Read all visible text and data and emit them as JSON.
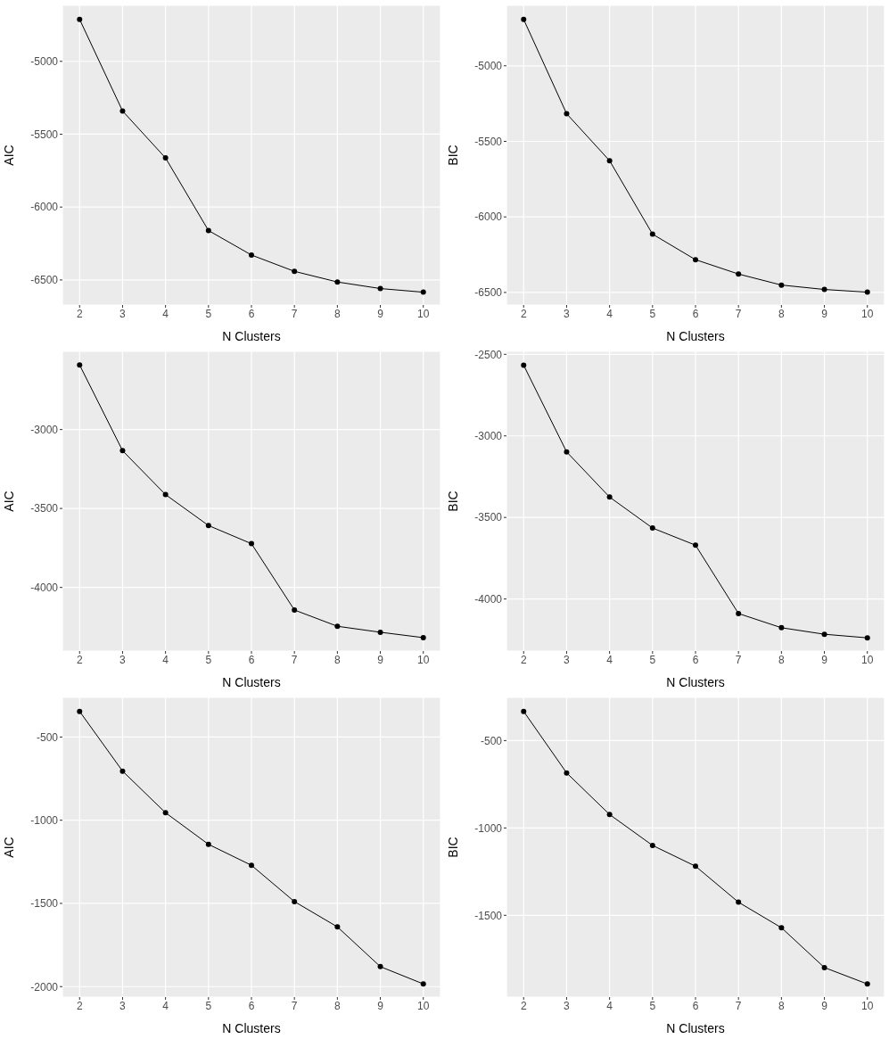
{
  "chart_data": [
    {
      "type": "line",
      "xlabel": "N Clusters",
      "ylabel": "AIC",
      "x": [
        2,
        3,
        4,
        5,
        6,
        7,
        8,
        9,
        10
      ],
      "xlim": [
        1.6,
        10.4
      ],
      "xticks": [
        2,
        3,
        4,
        5,
        6,
        7,
        8,
        9,
        10
      ],
      "ylim": [
        -6672,
        -4616
      ],
      "yticks": [
        -6500,
        -6000,
        -5500,
        -5000
      ],
      "grid": true,
      "marker": "circle",
      "series": [
        {
          "color": "#000000",
          "values": [
            -4712,
            -5341,
            -5663,
            -6161,
            -6329,
            -6441,
            -6514,
            -6559,
            -6584
          ]
        }
      ]
    },
    {
      "type": "line",
      "xlabel": "N Clusters",
      "ylabel": "BIC",
      "x": [
        2,
        3,
        4,
        5,
        6,
        7,
        8,
        9,
        10
      ],
      "xlim": [
        1.6,
        10.4
      ],
      "xticks": [
        2,
        3,
        4,
        5,
        6,
        7,
        8,
        9,
        10
      ],
      "ylim": [
        -6583,
        -4600
      ],
      "yticks": [
        -6500,
        -6000,
        -5500,
        -5000
      ],
      "grid": true,
      "marker": "circle",
      "series": [
        {
          "color": "#000000",
          "values": [
            -4693,
            -5317,
            -5628,
            -6114,
            -6283,
            -6378,
            -6451,
            -6480,
            -6498
          ]
        }
      ]
    },
    {
      "type": "line",
      "xlabel": "N Clusters",
      "ylabel": "AIC",
      "x": [
        2,
        3,
        4,
        5,
        6,
        7,
        8,
        9,
        10
      ],
      "xlim": [
        1.6,
        10.4
      ],
      "xticks": [
        2,
        3,
        4,
        5,
        6,
        7,
        8,
        9,
        10
      ],
      "ylim": [
        -4403,
        -2505
      ],
      "yticks": [
        -4000,
        -3500,
        -3000
      ],
      "grid": true,
      "marker": "circle",
      "series": [
        {
          "color": "#000000",
          "values": [
            -2591,
            -3134,
            -3412,
            -3608,
            -3723,
            -4143,
            -4246,
            -4284,
            -4318
          ]
        }
      ]
    },
    {
      "type": "line",
      "xlabel": "N Clusters",
      "ylabel": "BIC",
      "x": [
        2,
        3,
        4,
        5,
        6,
        7,
        8,
        9,
        10
      ],
      "xlim": [
        1.6,
        10.4
      ],
      "xticks": [
        2,
        3,
        4,
        5,
        6,
        7,
        8,
        9,
        10
      ],
      "ylim": [
        -4319,
        -2482
      ],
      "yticks": [
        -4000,
        -3500,
        -3000,
        -2500
      ],
      "grid": true,
      "marker": "circle",
      "series": [
        {
          "color": "#000000",
          "values": [
            -2567,
            -3098,
            -3375,
            -3565,
            -3670,
            -4089,
            -4176,
            -4216,
            -4238
          ]
        }
      ]
    },
    {
      "type": "line",
      "xlabel": "N Clusters",
      "ylabel": "AIC",
      "x": [
        2,
        3,
        4,
        5,
        6,
        7,
        8,
        9,
        10
      ],
      "xlim": [
        1.6,
        10.4
      ],
      "xticks": [
        2,
        3,
        4,
        5,
        6,
        7,
        8,
        9,
        10
      ],
      "ylim": [
        -2063,
        -262
      ],
      "yticks": [
        -2000,
        -1500,
        -1000,
        -500
      ],
      "grid": true,
      "marker": "circle",
      "series": [
        {
          "color": "#000000",
          "values": [
            -346,
            -705,
            -955,
            -1145,
            -1271,
            -1489,
            -1641,
            -1880,
            -1984
          ]
        }
      ]
    },
    {
      "type": "line",
      "xlabel": "N Clusters",
      "ylabel": "BIC",
      "x": [
        2,
        3,
        4,
        5,
        6,
        7,
        8,
        9,
        10
      ],
      "xlim": [
        1.6,
        10.4
      ],
      "xticks": [
        2,
        3,
        4,
        5,
        6,
        7,
        8,
        9,
        10
      ],
      "ylim": [
        -1968,
        -253
      ],
      "yticks": [
        -1500,
        -1000,
        -500
      ],
      "grid": true,
      "marker": "circle",
      "series": [
        {
          "color": "#000000",
          "values": [
            -333,
            -685,
            -923,
            -1100,
            -1219,
            -1425,
            -1571,
            -1799,
            -1893
          ]
        }
      ]
    }
  ]
}
